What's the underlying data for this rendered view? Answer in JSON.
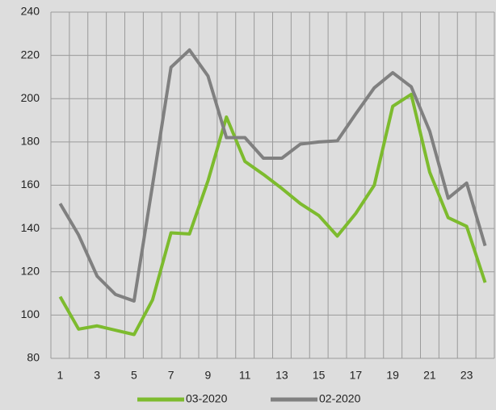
{
  "chart_data": {
    "type": "line",
    "categories": [
      "1",
      null,
      "3",
      null,
      "5",
      null,
      "7",
      null,
      "9",
      null,
      "11",
      null,
      "13",
      null,
      "15",
      null,
      "17",
      null,
      "19",
      null,
      "21",
      null,
      "23",
      null
    ],
    "series": [
      {
        "name": "03-2020",
        "color": "#7dbb2e",
        "values": [
          108.5,
          93.5,
          95,
          93,
          91,
          107,
          138,
          137.5,
          162,
          191.5,
          171,
          165,
          158.5,
          151.5,
          146,
          136.5,
          147,
          160,
          196.5,
          202,
          166,
          145,
          141,
          115
        ]
      },
      {
        "name": "02-2020",
        "color": "#808080",
        "values": [
          151.5,
          137,
          118,
          109.5,
          106.5,
          160,
          214.5,
          222.5,
          210.5,
          182,
          182,
          172.5,
          172.5,
          179,
          180,
          180.5,
          193,
          205,
          212,
          205.5,
          185,
          154,
          161,
          132
        ]
      }
    ],
    "ylim": [
      80,
      240
    ],
    "yticks": [
      80,
      100,
      120,
      140,
      160,
      180,
      200,
      220,
      240
    ],
    "grid": true,
    "legend": "bottom"
  }
}
